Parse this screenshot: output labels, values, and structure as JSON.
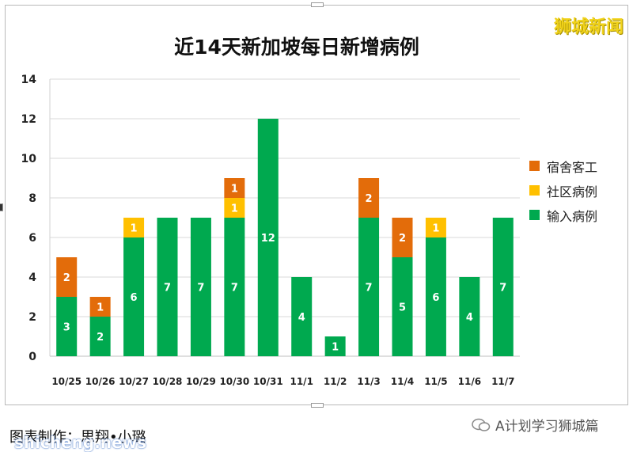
{
  "chart_data": {
    "type": "bar",
    "stacked": true,
    "title": "近14天新加坡每日新增病例",
    "categories": [
      "10/25",
      "10/26",
      "10/27",
      "10/28",
      "10/29",
      "10/30",
      "10/31",
      "11/1",
      "11/2",
      "11/3",
      "11/4",
      "11/5",
      "11/6",
      "11/7"
    ],
    "series": [
      {
        "name": "输入病例",
        "color": "#00a94f",
        "values": [
          3,
          2,
          6,
          7,
          7,
          7,
          12,
          4,
          1,
          7,
          5,
          6,
          4,
          7
        ]
      },
      {
        "name": "社区病例",
        "color": "#ffc000",
        "values": [
          0,
          0,
          1,
          0,
          0,
          1,
          0,
          0,
          0,
          0,
          0,
          1,
          0,
          0
        ]
      },
      {
        "name": "宿舍客工",
        "color": "#e36c0a",
        "values": [
          2,
          1,
          0,
          0,
          0,
          1,
          0,
          0,
          0,
          2,
          2,
          0,
          0,
          0
        ]
      }
    ],
    "ylim": [
      0,
      14
    ],
    "yticks": [
      0,
      2,
      4,
      6,
      8,
      10,
      12,
      14
    ],
    "grid": true,
    "legend_position": "right"
  },
  "legend_order": [
    "宿舍客工",
    "社区病例",
    "输入病例"
  ],
  "watermark": "狮城新闻",
  "credit": "图表制作：思翔•小璐",
  "source_watermark": "shicheng.news",
  "account_name": "A计划学习狮城篇"
}
